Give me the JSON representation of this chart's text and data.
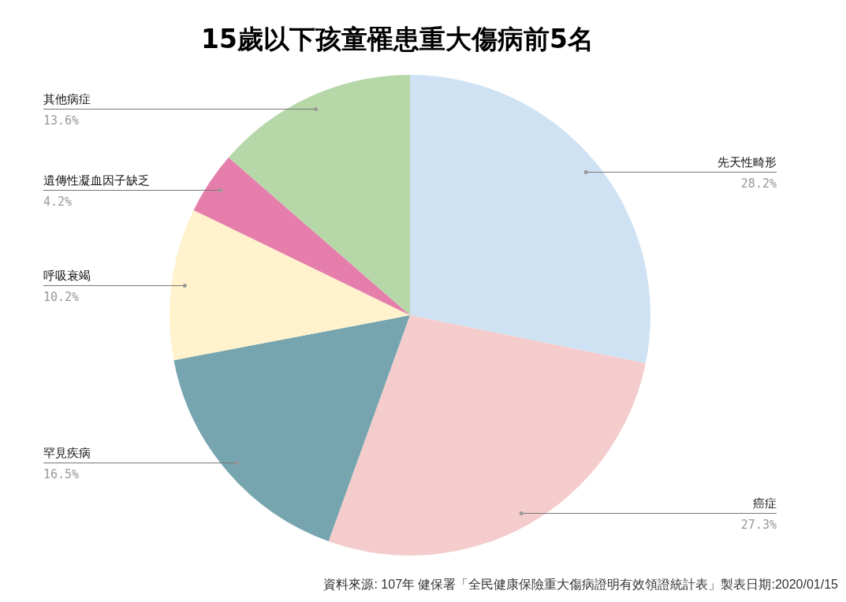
{
  "chart_data": {
    "type": "pie",
    "title": "15歲以下孩童罹患重大傷病前5名",
    "categories": [
      "先天性畸形",
      "癌症",
      "罕見疾病",
      "呼吸衰竭",
      "遺傳性凝血因子缺乏",
      "其他病症"
    ],
    "values": [
      28.2,
      27.3,
      16.5,
      10.2,
      4.2,
      13.6
    ],
    "colors": [
      "#cfe2f3",
      "#f4cccc",
      "#76a5af",
      "#fff2cc",
      "#e67eac",
      "#b6d7a8"
    ],
    "value_labels": [
      "28.2%",
      "27.3%",
      "16.5%",
      "10.2%",
      "4.2%",
      "13.6%"
    ],
    "annotations": [
      "資料來源: 107年 健保署「全民健康保險重大傷病證明有效領證統計表」製表日期:2020/01/15"
    ]
  }
}
